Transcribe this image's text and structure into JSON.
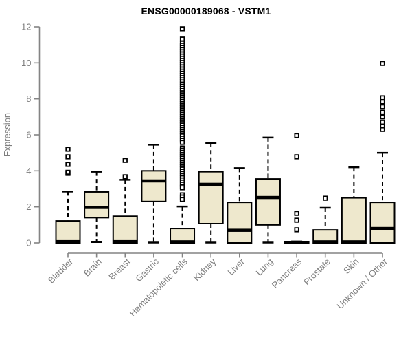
{
  "chart_data": {
    "type": "boxplot",
    "title": "ENSG00000189068 - VSTM1",
    "ylabel": "Expression",
    "xlabel": "",
    "ylim": [
      0,
      12
    ],
    "yticks": [
      0,
      2,
      4,
      6,
      8,
      10,
      12
    ],
    "grid": false,
    "legend": "none",
    "categories": [
      "Bladder",
      "Brain",
      "Breast",
      "Gastric",
      "Hematopoietic cells",
      "Kidney",
      "Liver",
      "Lung",
      "Pancreas",
      "Prostate",
      "Skin",
      "Unknown / Other"
    ],
    "series": [
      {
        "name": "Bladder",
        "whisker_low": 0,
        "q1": 0,
        "median": 0.07,
        "q3": 1.22,
        "whisker_high": 2.85,
        "outliers": [
          3.86,
          3.92,
          4.36,
          4.78,
          5.2
        ]
      },
      {
        "name": "Brain",
        "whisker_low": 0.05,
        "q1": 1.4,
        "median": 1.97,
        "q3": 2.83,
        "whisker_high": 3.95,
        "outliers": []
      },
      {
        "name": "Breast",
        "whisker_low": 0,
        "q1": 0,
        "median": 0.07,
        "q3": 1.48,
        "whisker_high": 3.5,
        "outliers": [
          3.67,
          4.58
        ]
      },
      {
        "name": "Gastric",
        "whisker_low": 0.02,
        "q1": 2.3,
        "median": 3.44,
        "q3": 4.0,
        "whisker_high": 5.45,
        "outliers": []
      },
      {
        "name": "Hematopoietic cells",
        "whisker_low": 0,
        "q1": 0,
        "median": 0.06,
        "q3": 0.8,
        "whisker_high": 2.02,
        "outliers": [
          11.89,
          11.32,
          11.1,
          10.98,
          10.86,
          10.74,
          10.62,
          10.5,
          10.38,
          10.26,
          10.14,
          10.02,
          9.9,
          9.78,
          9.66,
          9.54,
          9.42,
          9.3,
          9.18,
          9.06,
          8.94,
          8.82,
          8.7,
          8.58,
          8.46,
          8.34,
          8.22,
          8.1,
          7.98,
          7.86,
          7.74,
          7.62,
          7.5,
          7.38,
          7.26,
          7.14,
          7.02,
          6.9,
          6.78,
          6.66,
          6.54,
          6.42,
          6.3,
          6.18,
          6.06,
          5.94,
          5.82,
          5.7,
          5.58,
          5.27,
          5.15,
          5.03,
          4.91,
          4.81,
          4.7,
          4.58,
          4.46,
          4.34,
          4.22,
          4.1,
          3.98,
          3.86,
          3.74,
          3.62,
          3.5,
          3.38,
          3.26,
          3.14,
          3.06,
          2.67,
          2.55,
          2.41
        ]
      },
      {
        "name": "Kidney",
        "whisker_low": 0.02,
        "q1": 1.07,
        "median": 3.25,
        "q3": 3.95,
        "whisker_high": 5.55,
        "outliers": []
      },
      {
        "name": "Liver",
        "whisker_low": 0,
        "q1": 0,
        "median": 0.7,
        "q3": 2.25,
        "whisker_high": 4.15,
        "outliers": []
      },
      {
        "name": "Lung",
        "whisker_low": 0.02,
        "q1": 1.0,
        "median": 2.52,
        "q3": 3.55,
        "whisker_high": 5.85,
        "outliers": []
      },
      {
        "name": "Pancreas",
        "whisker_low": 0,
        "q1": 0,
        "median": 0.02,
        "q3": 0.06,
        "whisker_high": 0.08,
        "outliers": [
          0.73,
          1.26,
          1.64,
          4.78,
          5.96
        ]
      },
      {
        "name": "Prostate",
        "whisker_low": 0,
        "q1": 0,
        "median": 0.06,
        "q3": 0.72,
        "whisker_high": 1.95,
        "outliers": [
          2.48
        ]
      },
      {
        "name": "Skin",
        "whisker_low": 0,
        "q1": 0,
        "median": 0.06,
        "q3": 2.5,
        "whisker_high": 4.2,
        "outliers": []
      },
      {
        "name": "Unknown / Other",
        "whisker_low": 0,
        "q1": 0,
        "median": 0.8,
        "q3": 2.25,
        "whisker_high": 5.0,
        "outliers": [
          6.3,
          6.5,
          6.7,
          7.0,
          7.26,
          7.56,
          7.83,
          8.06,
          9.97
        ]
      }
    ],
    "colors": {
      "box_fill": "#EEE8CD",
      "box_border": "#000000",
      "median": "#000000",
      "whisker": "#000000",
      "outlier_stroke": "#000000",
      "outlier_fill": "#FFFFFF",
      "axis": "#848484",
      "tick_label": "#7E7E7E",
      "title": "#000000",
      "background": "#FFFFFF"
    }
  }
}
